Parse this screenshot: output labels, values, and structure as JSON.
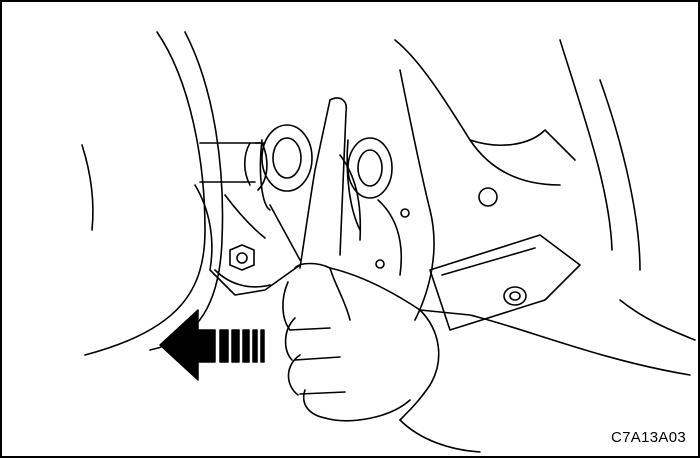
{
  "figure": {
    "code": "C7A13A03",
    "line_color": "#000000",
    "fill_color": "#ffffff",
    "arrow": {
      "direction": "left",
      "style": "striped"
    }
  }
}
